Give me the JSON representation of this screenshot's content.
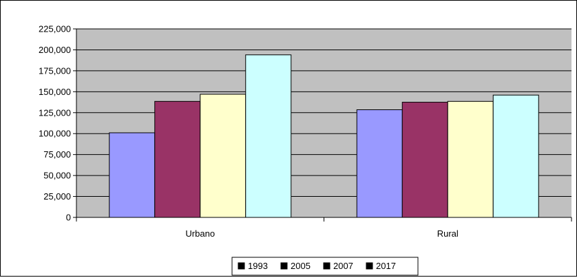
{
  "chart_data": {
    "type": "bar",
    "title": "",
    "xlabel": "",
    "ylabel": "",
    "categories": [
      "Urbano",
      "Rural"
    ],
    "ylim": [
      0,
      225000
    ],
    "y_ticks": [
      "0",
      "25,000",
      "50,000",
      "75,000",
      "100,000",
      "125,000",
      "150,000",
      "175,000",
      "200,000",
      "225,000"
    ],
    "grid": true,
    "legend_position": "bottom",
    "series": [
      {
        "name": "1993",
        "color": "#9999FF",
        "values": [
          101000,
          128500
        ]
      },
      {
        "name": "2005",
        "color": "#993366",
        "values": [
          138500,
          137500
        ]
      },
      {
        "name": "2007",
        "color": "#FFFFCC",
        "values": [
          147000,
          138500
        ]
      },
      {
        "name": "2017",
        "color": "#CCFFFF",
        "values": [
          194000,
          146000
        ]
      }
    ],
    "plot_background": "#C0C0C0"
  }
}
